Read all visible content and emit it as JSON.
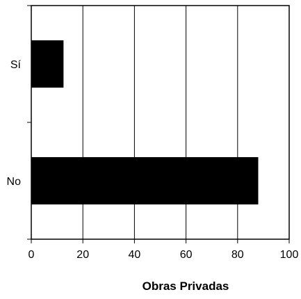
{
  "chart_data": {
    "type": "bar",
    "orientation": "horizontal",
    "categories": [
      "Sí",
      "No"
    ],
    "values": [
      12.5,
      88
    ],
    "title": "",
    "xlabel": "Obras Privadas",
    "ylabel": "",
    "xlim": [
      0,
      100
    ],
    "xticks": [
      0,
      20,
      40,
      60,
      80,
      100
    ],
    "xtick_labels": [
      "0",
      "20",
      "40",
      "60",
      "80",
      "100"
    ],
    "grid": "vertical",
    "bar_color": "#000000"
  }
}
